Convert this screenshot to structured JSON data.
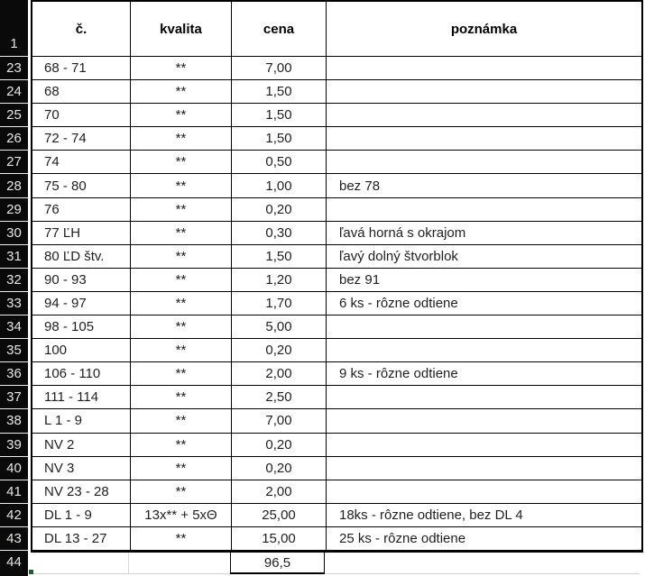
{
  "table": {
    "header_row_number": "1",
    "headers": {
      "c": "č.",
      "kvalita": "kvalita",
      "cena": "cena",
      "poznamka": "poznámka"
    },
    "rows": [
      {
        "num": "23",
        "c": "68 - 71",
        "kvalita": "**",
        "cena": "7,00",
        "poznamka": ""
      },
      {
        "num": "24",
        "c": "68",
        "kvalita": "**",
        "cena": "1,50",
        "poznamka": ""
      },
      {
        "num": "25",
        "c": "70",
        "kvalita": "**",
        "cena": "1,50",
        "poznamka": ""
      },
      {
        "num": "26",
        "c": "72 - 74",
        "kvalita": "**",
        "cena": "1,50",
        "poznamka": ""
      },
      {
        "num": "27",
        "c": "74",
        "kvalita": "**",
        "cena": "0,50",
        "poznamka": ""
      },
      {
        "num": "28",
        "c": "75 - 80",
        "kvalita": "**",
        "cena": "1,00",
        "poznamka": "bez 78"
      },
      {
        "num": "29",
        "c": "76",
        "kvalita": "**",
        "cena": "0,20",
        "poznamka": ""
      },
      {
        "num": "30",
        "c": "77 ĽH",
        "kvalita": "**",
        "cena": "0,30",
        "poznamka": "ľavá horná s okrajom"
      },
      {
        "num": "31",
        "c": "80 ĽD štv.",
        "kvalita": "**",
        "cena": "1,50",
        "poznamka": "ľavý dolný štvorblok"
      },
      {
        "num": "32",
        "c": "90 - 93",
        "kvalita": "**",
        "cena": "1,20",
        "poznamka": "bez 91"
      },
      {
        "num": "33",
        "c": "94 - 97",
        "kvalita": "**",
        "cena": "1,70",
        "poznamka": "6 ks - rôzne odtiene"
      },
      {
        "num": "34",
        "c": "98 - 105",
        "kvalita": "**",
        "cena": "5,00",
        "poznamka": ""
      },
      {
        "num": "35",
        "c": "100",
        "kvalita": "**",
        "cena": "0,20",
        "poznamka": ""
      },
      {
        "num": "36",
        "c": "106 - 110",
        "kvalita": "**",
        "cena": "2,00",
        "poznamka": "9 ks - rôzne odtiene"
      },
      {
        "num": "37",
        "c": "111 - 114",
        "kvalita": "**",
        "cena": "2,50",
        "poznamka": ""
      },
      {
        "num": "38",
        "c": "L 1 - 9",
        "kvalita": "**",
        "cena": "7,00",
        "poznamka": ""
      },
      {
        "num": "39",
        "c": "NV 2",
        "kvalita": "**",
        "cena": "0,20",
        "poznamka": ""
      },
      {
        "num": "40",
        "c": "NV 3",
        "kvalita": "**",
        "cena": "0,20",
        "poznamka": ""
      },
      {
        "num": "41",
        "c": "NV 23 - 28",
        "kvalita": "**",
        "cena": "2,00",
        "poznamka": ""
      },
      {
        "num": "42",
        "c": "DL 1 - 9",
        "kvalita": "13x** + 5xΘ",
        "cena": "25,00",
        "poznamka": "18ks - rôzne odtiene, bez DL 4"
      },
      {
        "num": "43",
        "c": "DL 13 - 27",
        "kvalita": "**",
        "cena": "15,00",
        "poznamka": "25 ks - rôzne odtiene"
      }
    ],
    "total_row": {
      "num": "44",
      "c": "",
      "kvalita": "",
      "cena": "96,5",
      "poznamka": ""
    }
  },
  "colors": {
    "row_header_bg": "#0a0a0a",
    "row_header_text": "#e7e5e2",
    "grid_black": "#000000",
    "grid_light": "#d9d9d9",
    "selection_marker_green": "#1e5c31"
  }
}
